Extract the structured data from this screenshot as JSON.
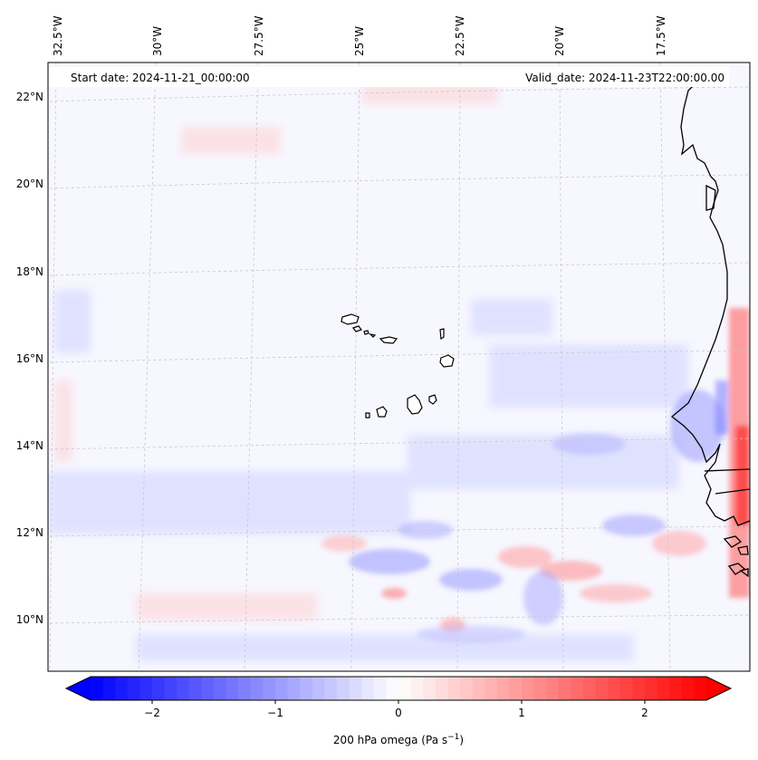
{
  "header": {
    "start_date": "Start date: 2024-11-21_00:00:00",
    "valid_date": "Valid_date: 2024-11-23T22:00:00.00"
  },
  "map": {
    "lon_labels": [
      "32.5°W",
      "30°W",
      "27.5°W",
      "25°W",
      "22.5°W",
      "20°W",
      "17.5°W"
    ],
    "lat_labels": [
      "22°N",
      "20°N",
      "18°N",
      "16°N",
      "14°N",
      "12°N",
      "10°N"
    ],
    "colors": {
      "negative": "#0000ff",
      "zero": "#ffffff",
      "positive": "#ff0000",
      "coast": "#000000",
      "grid": "#c8c8c8"
    }
  },
  "colorbar": {
    "ticks": [
      "−2",
      "−1",
      "0",
      "1",
      "2"
    ],
    "tick_values": [
      -2,
      -1,
      0,
      1,
      2
    ],
    "min": -2.5,
    "max": 2.5,
    "label": "200 hPa omega (Pa s",
    "label_sup": "−1",
    "label_suffix": ")"
  }
}
